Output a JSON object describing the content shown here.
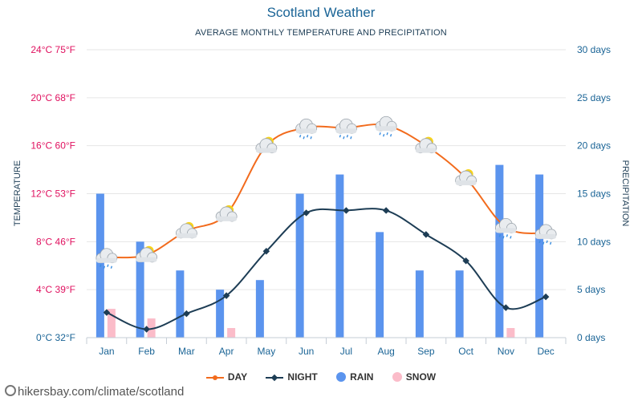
{
  "chart_data": {
    "type": "bar+line",
    "title": "Scotland Weather",
    "subtitle": "AVERAGE MONTHLY TEMPERATURE AND PRECIPITATION",
    "categories": [
      "Jan",
      "Feb",
      "Mar",
      "Apr",
      "May",
      "Jun",
      "Jul",
      "Aug",
      "Sep",
      "Oct",
      "Nov",
      "Dec"
    ],
    "left_axis": {
      "label": "TEMPERATURE",
      "ticks": [
        "0°C 32°F",
        "4°C 39°F",
        "8°C 46°F",
        "12°C 53°F",
        "16°C 60°F",
        "20°C 68°F",
        "24°C 75°F"
      ],
      "range": [
        0,
        24
      ]
    },
    "right_axis": {
      "label": "PRECIPITATION",
      "ticks": [
        "0 days",
        "5 days",
        "10 days",
        "15 days",
        "20 days",
        "25 days",
        "30 days"
      ],
      "range": [
        0,
        30
      ]
    },
    "series": [
      {
        "name": "DAY",
        "kind": "line",
        "axis": "temperature",
        "color": "#f26b1d",
        "values": [
          6.7,
          6.9,
          8.9,
          10.3,
          16.0,
          17.5,
          17.5,
          17.7,
          16.0,
          13.3,
          9.2,
          8.7
        ]
      },
      {
        "name": "NIGHT",
        "kind": "line",
        "axis": "temperature",
        "color": "#1d3d55",
        "values": [
          2.1,
          0.7,
          2.0,
          3.5,
          7.2,
          10.4,
          10.6,
          10.6,
          8.6,
          6.4,
          2.5,
          3.4
        ]
      },
      {
        "name": "RAIN",
        "kind": "bar",
        "axis": "precipitation",
        "color": "#5b94ee",
        "values": [
          15,
          10,
          7,
          5,
          6,
          15,
          17,
          11,
          7,
          7,
          18,
          17
        ]
      },
      {
        "name": "SNOW",
        "kind": "bar",
        "axis": "precipitation",
        "color": "#fbbcc9",
        "values": [
          3,
          2,
          0,
          1,
          0,
          0,
          0,
          0,
          0,
          0,
          1,
          0
        ]
      }
    ],
    "weather_icons": [
      "cloud-rain-icon",
      "cloud-sun-icon",
      "cloud-sun-icon",
      "cloud-sun-icon",
      "cloud-sun-icon",
      "cloud-rain-icon",
      "cloud-rain-icon",
      "cloud-rain-icon",
      "cloud-sun-icon",
      "cloud-sun-icon",
      "cloud-rain-icon",
      "cloud-rain-icon"
    ],
    "grid": true,
    "legend_position": "bottom",
    "left_tick_color": "#e0115f",
    "axis_text_color": "#1a6496"
  },
  "watermark": "hikersbay.com/climate/scotland"
}
